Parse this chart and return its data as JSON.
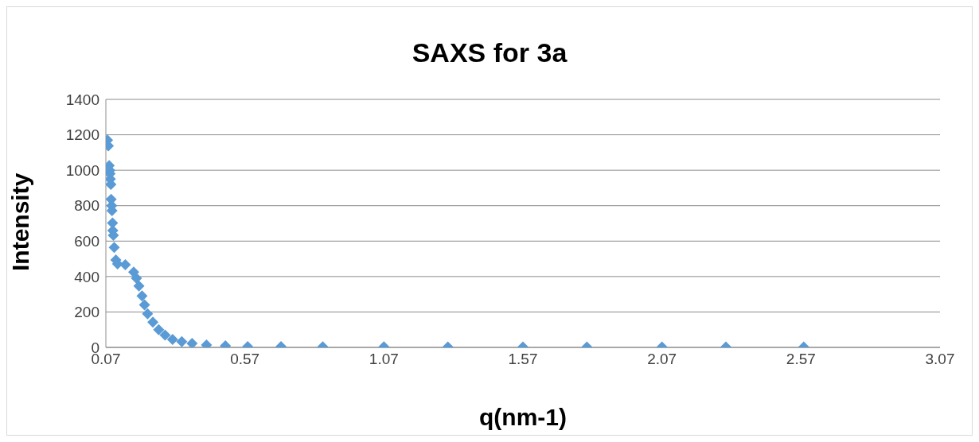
{
  "chart_data": {
    "type": "scatter",
    "title": "SAXS for 3a",
    "xlabel": "q(nm-1)",
    "ylabel": "Intensity",
    "x": [
      0.076,
      0.079,
      0.082,
      0.084,
      0.085,
      0.086,
      0.088,
      0.089,
      0.091,
      0.092,
      0.094,
      0.095,
      0.097,
      0.1,
      0.106,
      0.112,
      0.14,
      0.17,
      0.18,
      0.189,
      0.2,
      0.209,
      0.22,
      0.239,
      0.26,
      0.283,
      0.31,
      0.343,
      0.38,
      0.432,
      0.5,
      0.58,
      0.7,
      0.85,
      1.07,
      1.3,
      1.57,
      1.8,
      2.07,
      2.3,
      2.58
    ],
    "series": [
      {
        "color": "#5b9bd5",
        "values": [
          1170,
          1137,
          1026,
          1000,
          980,
          950,
          920,
          836,
          800,
          772,
          702,
          660,
          633,
          564,
          494,
          471,
          467,
          425,
          390,
          347,
          290,
          240,
          190,
          143,
          100,
          69,
          45,
          32,
          22,
          14,
          9,
          5,
          4,
          3,
          3,
          2,
          2,
          2,
          2,
          2,
          2
        ]
      }
    ],
    "xlim": [
      0.07,
      3.07
    ],
    "xticks": [
      0.07,
      0.57,
      1.07,
      1.57,
      2.07,
      2.57,
      3.07
    ],
    "ylim": [
      0,
      1400
    ],
    "yticks": [
      0,
      200,
      400,
      600,
      800,
      1000,
      1200,
      1400
    ],
    "grid": "y",
    "marker": "diamond",
    "legend": false
  }
}
